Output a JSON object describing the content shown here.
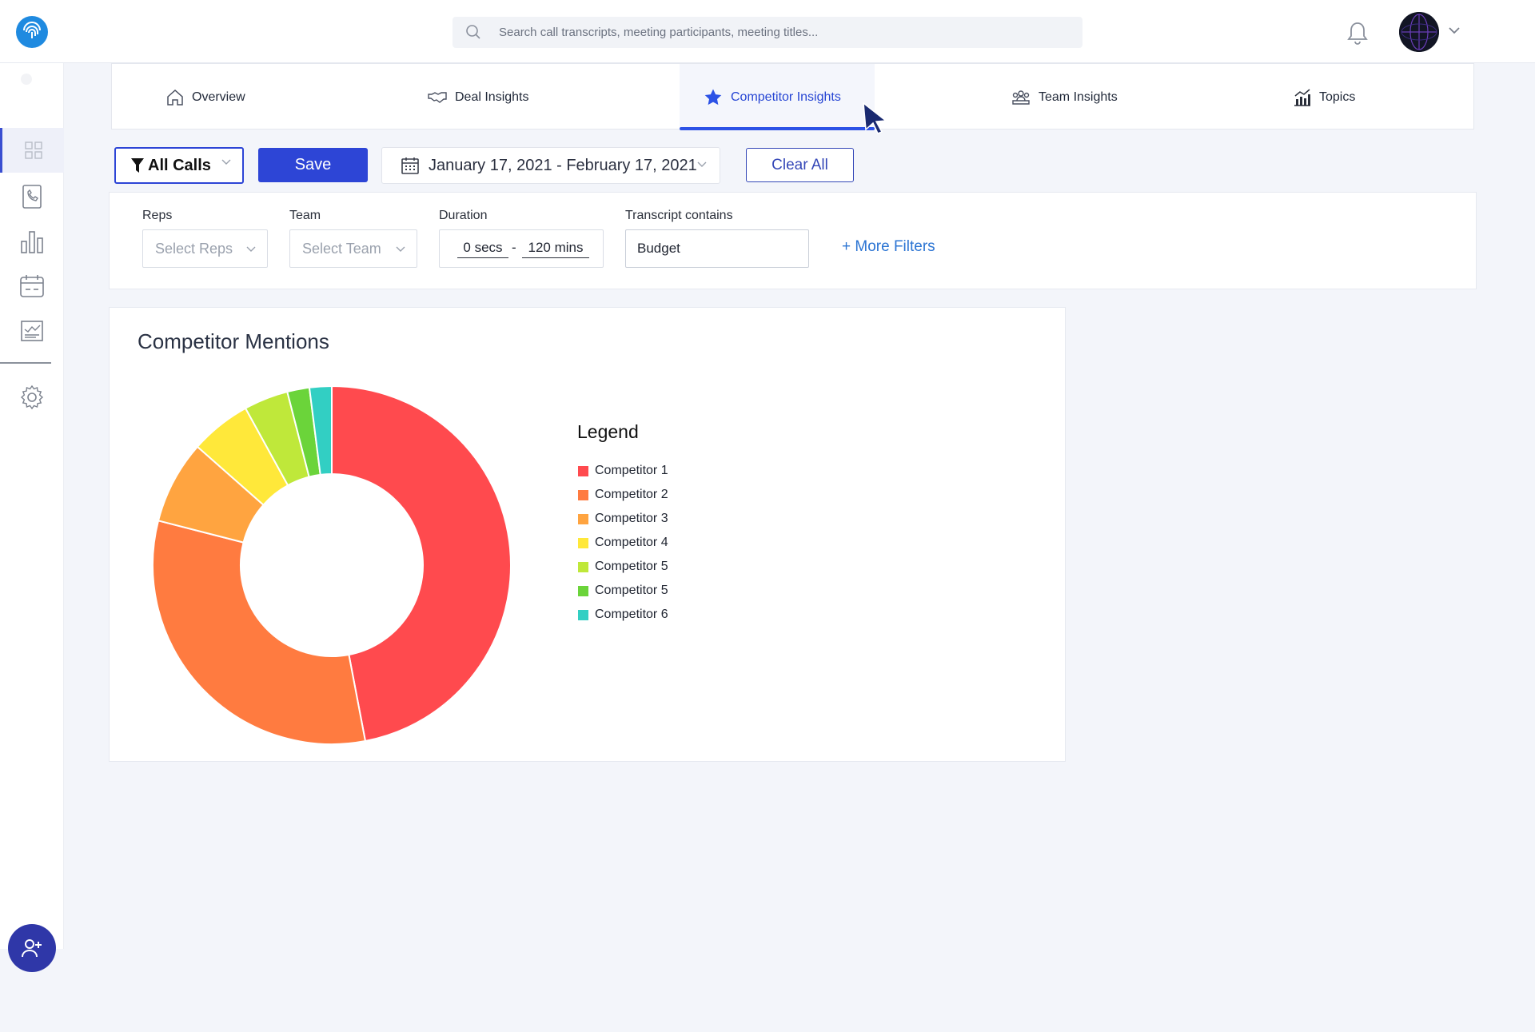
{
  "header": {
    "search_placeholder": "Search call transcripts, meeting participants, meeting titles..."
  },
  "icons": {
    "logo": "fingerprint-logo-icon",
    "search": "search-icon",
    "bell": "bell-icon",
    "sidebar": [
      "dashboard-grid-icon",
      "call-log-icon",
      "bar-chart-icon",
      "calendar-icon",
      "report-icon",
      "settings-gear-icon"
    ],
    "fab": "add-user-icon"
  },
  "tabs": [
    {
      "label": "Overview",
      "icon": "home-icon"
    },
    {
      "label": "Deal Insights",
      "icon": "handshake-icon"
    },
    {
      "label": "Competitor Insights",
      "icon": "star-icon",
      "active": true
    },
    {
      "label": "Team Insights",
      "icon": "team-icon"
    },
    {
      "label": "Topics",
      "icon": "chart-growth-icon"
    }
  ],
  "toolbar": {
    "all_calls_label": "All Calls",
    "save_label": "Save",
    "date_range": "January 17, 2021 - February 17, 2021",
    "clear_label": "Clear All"
  },
  "filters": {
    "reps_label": "Reps",
    "reps_placeholder": "Select Reps",
    "team_label": "Team",
    "team_placeholder": "Select Team",
    "duration_label": "Duration",
    "duration_min": "0 secs",
    "duration_sep": "-",
    "duration_max": "120 mins",
    "transcript_label": "Transcript contains",
    "transcript_value": "Budget",
    "more_filters": "+ More Filters"
  },
  "chart": {
    "title": "Competitor Mentions",
    "legend_title": "Legend"
  },
  "colors": {
    "accent": "#2d45d6",
    "active_tab": "#2746d4",
    "link": "#2b74d3"
  },
  "chart_data": {
    "type": "pie",
    "donut": true,
    "title": "Competitor Mentions",
    "legend_placement": "right",
    "series": [
      {
        "name": "Competitor 1",
        "value": 47,
        "color": "#ff4a4e"
      },
      {
        "name": "Competitor 2",
        "value": 32,
        "color": "#ff7b40"
      },
      {
        "name": "Competitor 3",
        "value": 7.5,
        "color": "#ffa440"
      },
      {
        "name": "Competitor 4",
        "value": 5.5,
        "color": "#ffe83a"
      },
      {
        "name": "Competitor 5",
        "value": 4,
        "color": "#bfe83a"
      },
      {
        "name": "Competitor 5",
        "value": 2,
        "color": "#6bd43a"
      },
      {
        "name": "Competitor 6",
        "value": 2,
        "color": "#32cfc3"
      }
    ]
  }
}
